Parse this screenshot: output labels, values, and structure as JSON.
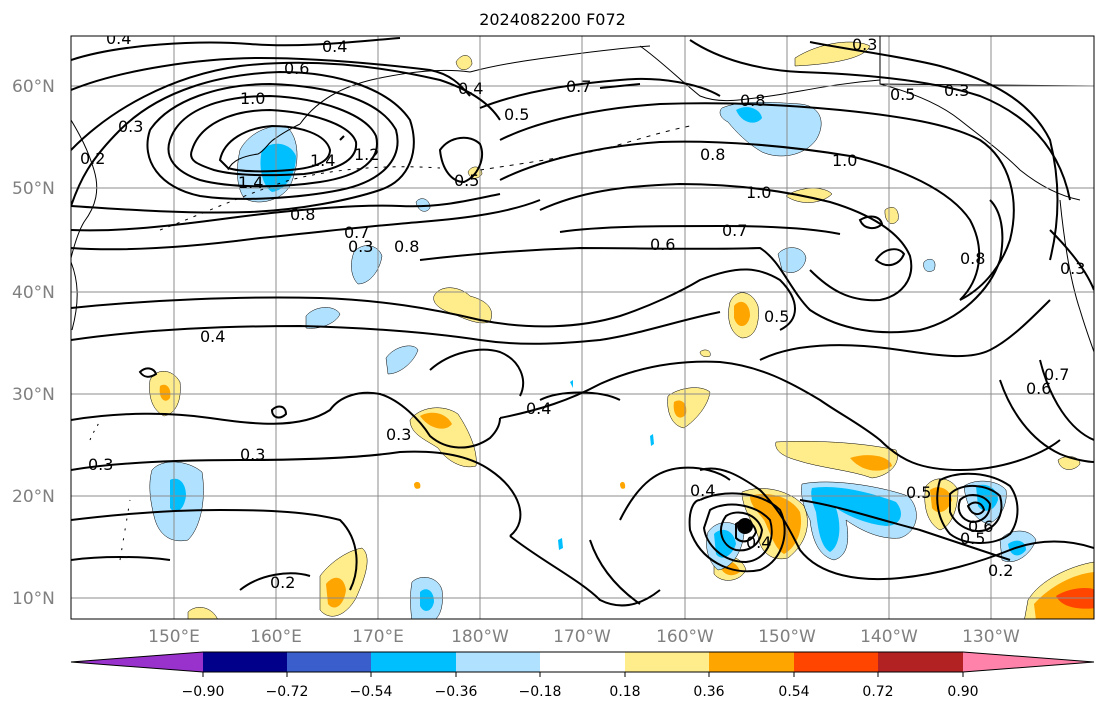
{
  "title": "2024082200 F072",
  "map": {
    "lat_labels": [
      "60°N",
      "50°N",
      "40°N",
      "30°N",
      "20°N",
      "10°N"
    ],
    "lon_labels": [
      "150°E",
      "160°E",
      "170°E",
      "180°W",
      "170°W",
      "160°W",
      "150°W",
      "140°W",
      "130°W"
    ],
    "contour_labels": [
      "0.4",
      "0.4",
      "0.6",
      "1.0",
      "0.3",
      "0.2",
      "1.4",
      "1.2",
      "1.4",
      "0.8",
      "0.4",
      "0.5",
      "0.5",
      "0.7",
      "0.3",
      "0.3",
      "0.8",
      "1.0",
      "1.0",
      "0.5",
      "0.7",
      "0.6",
      "0.7",
      "0.8",
      "0.8",
      "0.8",
      "0.3",
      "0.5",
      "0.4",
      "0.3",
      "0.3",
      "0.4",
      "0.3",
      "0.2",
      "0.4",
      "0.4",
      "0.5",
      "0.6",
      "0.5",
      "0.2",
      "0.6",
      "0.7",
      "0.3"
    ],
    "storm_marker": "tropical-cyclone-symbol"
  },
  "colorbar": {
    "ticks": [
      "−0.90",
      "−0.72",
      "−0.54",
      "−0.36",
      "−0.18",
      "0.18",
      "0.36",
      "0.54",
      "0.72",
      "0.90"
    ],
    "colors": [
      "#9932cc",
      "#00008b",
      "#3a5fcd",
      "#00bfff",
      "#b0e2ff",
      "#ffffff",
      "#ffec8b",
      "#ffa500",
      "#ff4500",
      "#b22222",
      "#ff82ab"
    ]
  }
}
